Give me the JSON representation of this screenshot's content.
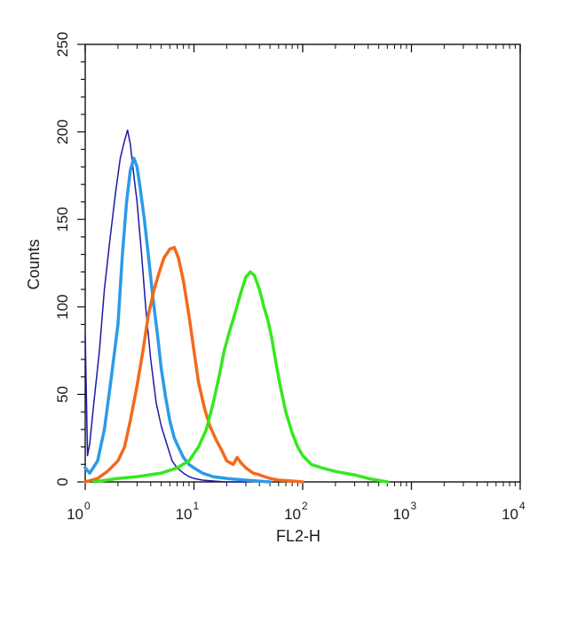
{
  "chart_data": {
    "type": "line",
    "title": "",
    "xlabel": "FL2-H",
    "ylabel": "Counts",
    "x_scale": "log",
    "xlim": [
      1,
      10000
    ],
    "ylim": [
      0,
      250
    ],
    "grid": false,
    "legend": "none",
    "x_ticks": [
      {
        "base": "10",
        "exp": "0",
        "value": 1
      },
      {
        "base": "10",
        "exp": "1",
        "value": 10
      },
      {
        "base": "10",
        "exp": "2",
        "value": 100
      },
      {
        "base": "10",
        "exp": "3",
        "value": 1000
      },
      {
        "base": "10",
        "exp": "4",
        "value": 10000
      }
    ],
    "y_ticks": [
      "0",
      "50",
      "100",
      "150",
      "200",
      "250"
    ],
    "series": [
      {
        "color": "#1a1aa6",
        "stroke": 1.5,
        "x": [
          1.0,
          1.05,
          1.1,
          1.2,
          1.35,
          1.5,
          1.7,
          1.9,
          2.1,
          2.3,
          2.45,
          2.6,
          2.8,
          3.0,
          3.3,
          3.6,
          4.0,
          4.5,
          5.0,
          5.6,
          6.3,
          7.0,
          8.0,
          9.0,
          10,
          12,
          15,
          20,
          30
        ],
        "y": [
          84,
          15,
          22,
          45,
          75,
          110,
          140,
          165,
          185,
          195,
          201,
          193,
          175,
          160,
          130,
          100,
          70,
          45,
          32,
          22,
          12,
          8,
          5,
          3,
          2,
          1,
          0.5,
          0,
          0
        ]
      },
      {
        "color": "#2b9be8",
        "stroke": 3.5,
        "x": [
          1.0,
          1.1,
          1.3,
          1.5,
          1.7,
          2.0,
          2.2,
          2.4,
          2.6,
          2.8,
          3.0,
          3.2,
          3.5,
          3.8,
          4.2,
          4.6,
          5.0,
          5.5,
          6.0,
          6.6,
          7.2,
          8.0,
          9.0,
          10,
          12,
          15,
          20,
          30,
          50
        ],
        "y": [
          8,
          5,
          12,
          30,
          55,
          90,
          130,
          160,
          178,
          185,
          180,
          168,
          150,
          130,
          105,
          85,
          65,
          48,
          35,
          25,
          20,
          14,
          10,
          8,
          5,
          3,
          2,
          1,
          0
        ]
      },
      {
        "color": "#f26a1b",
        "stroke": 3.5,
        "x": [
          1.0,
          1.3,
          1.6,
          2.0,
          2.3,
          2.6,
          3.0,
          3.4,
          3.8,
          4.3,
          4.8,
          5.3,
          6.0,
          6.6,
          7.2,
          8.0,
          9.0,
          10,
          11,
          12.5,
          14,
          16,
          18,
          20,
          23,
          25,
          27,
          30,
          35,
          40,
          50,
          60,
          80,
          100
        ],
        "y": [
          0,
          2,
          6,
          12,
          20,
          35,
          55,
          75,
          95,
          110,
          120,
          128,
          133,
          134,
          128,
          115,
          95,
          75,
          57,
          42,
          32,
          24,
          18,
          12,
          10,
          14,
          11,
          8,
          5,
          4,
          2,
          1,
          0.5,
          0
        ]
      },
      {
        "color": "#36e81e",
        "stroke": 3.5,
        "x": [
          1.2,
          2.0,
          3.0,
          5.0,
          7.0,
          9.0,
          11,
          13,
          15,
          17,
          19,
          21,
          24,
          27,
          30,
          33,
          36,
          40,
          44,
          48,
          52,
          56,
          62,
          70,
          80,
          90,
          100,
          120,
          150,
          200,
          300,
          400,
          600
        ],
        "y": [
          0,
          2,
          3,
          5,
          8,
          12,
          20,
          30,
          45,
          60,
          75,
          85,
          97,
          108,
          117,
          120,
          118,
          110,
          100,
          92,
          82,
          70,
          55,
          40,
          28,
          20,
          15,
          10,
          8,
          6,
          4,
          2,
          0
        ]
      }
    ]
  }
}
